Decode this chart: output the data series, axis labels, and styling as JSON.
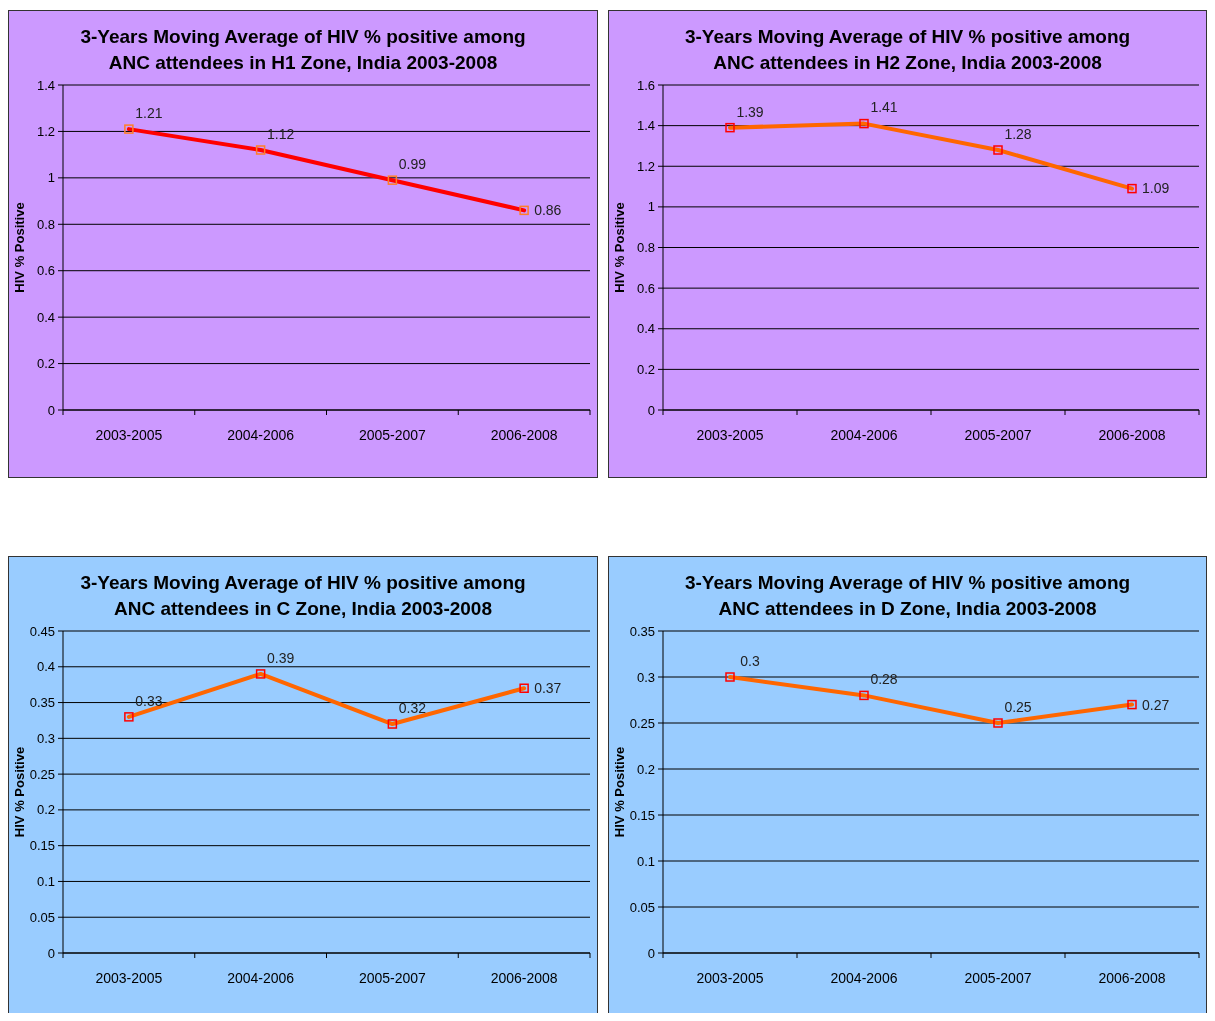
{
  "chart_data": [
    {
      "type": "line",
      "title": "3-Years Moving Average of HIV % positive among ANC attendees in H1 Zone, India 2003-2008",
      "ylabel": "HIV % Positive",
      "categories": [
        "2003-2005",
        "2004-2006",
        "2005-2007",
        "2006-2008"
      ],
      "series": [
        {
          "color": "#ff0000",
          "values": [
            1.21,
            1.12,
            0.99,
            0.86
          ]
        }
      ],
      "ylim": [
        0,
        1.4
      ],
      "yticks": [
        0,
        0.2,
        0.4,
        0.6,
        0.8,
        1,
        1.2,
        1.4
      ],
      "grid": "y",
      "marker": "square",
      "data_labels": true
    },
    {
      "type": "line",
      "title": "3-Years Moving Average of HIV % positive among ANC attendees in H2 Zone, India 2003-2008",
      "ylabel": "HIV % Positive",
      "categories": [
        "2003-2005",
        "2004-2006",
        "2005-2007",
        "2006-2008"
      ],
      "series": [
        {
          "color": "#ff6600",
          "values": [
            1.39,
            1.41,
            1.28,
            1.09
          ]
        }
      ],
      "ylim": [
        0,
        1.6
      ],
      "yticks": [
        0,
        0.2,
        0.4,
        0.6,
        0.8,
        1,
        1.2,
        1.4,
        1.6
      ],
      "grid": "y",
      "marker": "square",
      "data_labels": true
    },
    {
      "type": "line",
      "title": "3-Years Moving Average of HIV % positive among ANC attendees in C Zone, India 2003-2008",
      "ylabel": "HIV % Positive",
      "categories": [
        "2003-2005",
        "2004-2006",
        "2005-2007",
        "2006-2008"
      ],
      "series": [
        {
          "color": "#ff6600",
          "values": [
            0.33,
            0.39,
            0.32,
            0.37
          ]
        }
      ],
      "ylim": [
        0,
        0.45
      ],
      "yticks": [
        0,
        0.05,
        0.1,
        0.15,
        0.2,
        0.25,
        0.3,
        0.35,
        0.4,
        0.45
      ],
      "grid": "y",
      "marker": "square",
      "data_labels": true
    },
    {
      "type": "line",
      "title": "3-Years Moving Average of HIV % positive among ANC attendees in D Zone, India 2003-2008",
      "ylabel": "HIV % Positive",
      "categories": [
        "2003-2005",
        "2004-2006",
        "2005-2007",
        "2006-2008"
      ],
      "series": [
        {
          "color": "#ff6600",
          "values": [
            0.3,
            0.28,
            0.25,
            0.27
          ]
        }
      ],
      "ylim": [
        0,
        0.35
      ],
      "yticks": [
        0,
        0.05,
        0.1,
        0.15,
        0.2,
        0.25,
        0.3,
        0.35
      ],
      "grid": "y",
      "marker": "square",
      "data_labels": true
    }
  ]
}
